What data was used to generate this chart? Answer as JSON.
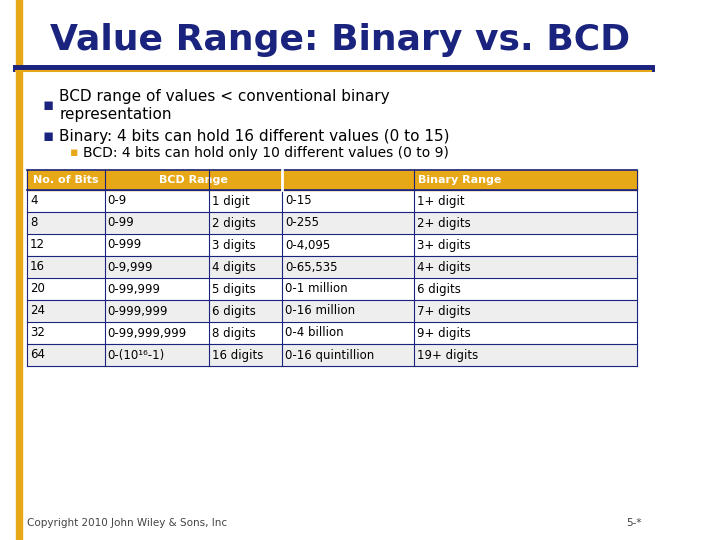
{
  "title": "Value Range: Binary vs. BCD",
  "title_color": "#1a237e",
  "title_fontsize": 26,
  "background_color": "#ffffff",
  "header_line_color": "#1a237e",
  "left_bar_color": "#e6a817",
  "bullet1_line1": "BCD range of values < conventional binary",
  "bullet1_line2": "representation",
  "bullet2": "Binary: 4 bits can hold 16 different values (0 to 15)",
  "sub_bullet": "BCD: 4 bits can hold only 10 different values (0 to 9)",
  "table_header_bg": "#e6a817",
  "table_header_text": "#ffffff",
  "table_row_bg_even": "#ffffff",
  "table_row_bg_odd": "#eeeeee",
  "table_border_color": "#1a237e",
  "table_text_color": "#000000",
  "rows": [
    [
      "4",
      "0-9",
      "1 digit",
      "0-15",
      "1+ digit"
    ],
    [
      "8",
      "0-99",
      "2 digits",
      "0-255",
      "2+ digits"
    ],
    [
      "12",
      "0-999",
      "3 digits",
      "0-4,095",
      "3+ digits"
    ],
    [
      "16",
      "0-9,999",
      "4 digits",
      "0-65,535",
      "4+ digits"
    ],
    [
      "20",
      "0-99,999",
      "5 digits",
      "0-1 million",
      "6 digits"
    ],
    [
      "24",
      "0-999,999",
      "6 digits",
      "0-16 million",
      "7+ digits"
    ],
    [
      "32",
      "0-99,999,999",
      "8 digits",
      "0-4 billion",
      "9+ digits"
    ],
    [
      "64",
      "0-(10¹⁶-1)",
      "16 digits",
      "0-16 quintillion",
      "19+ digits"
    ]
  ],
  "footer_left": "Copyright 2010 John Wiley & Sons, Inc",
  "footer_right": "5-*",
  "bullet_color": "#1a237e",
  "bullet_text_color": "#000000",
  "sub_bullet_color": "#e6a817"
}
